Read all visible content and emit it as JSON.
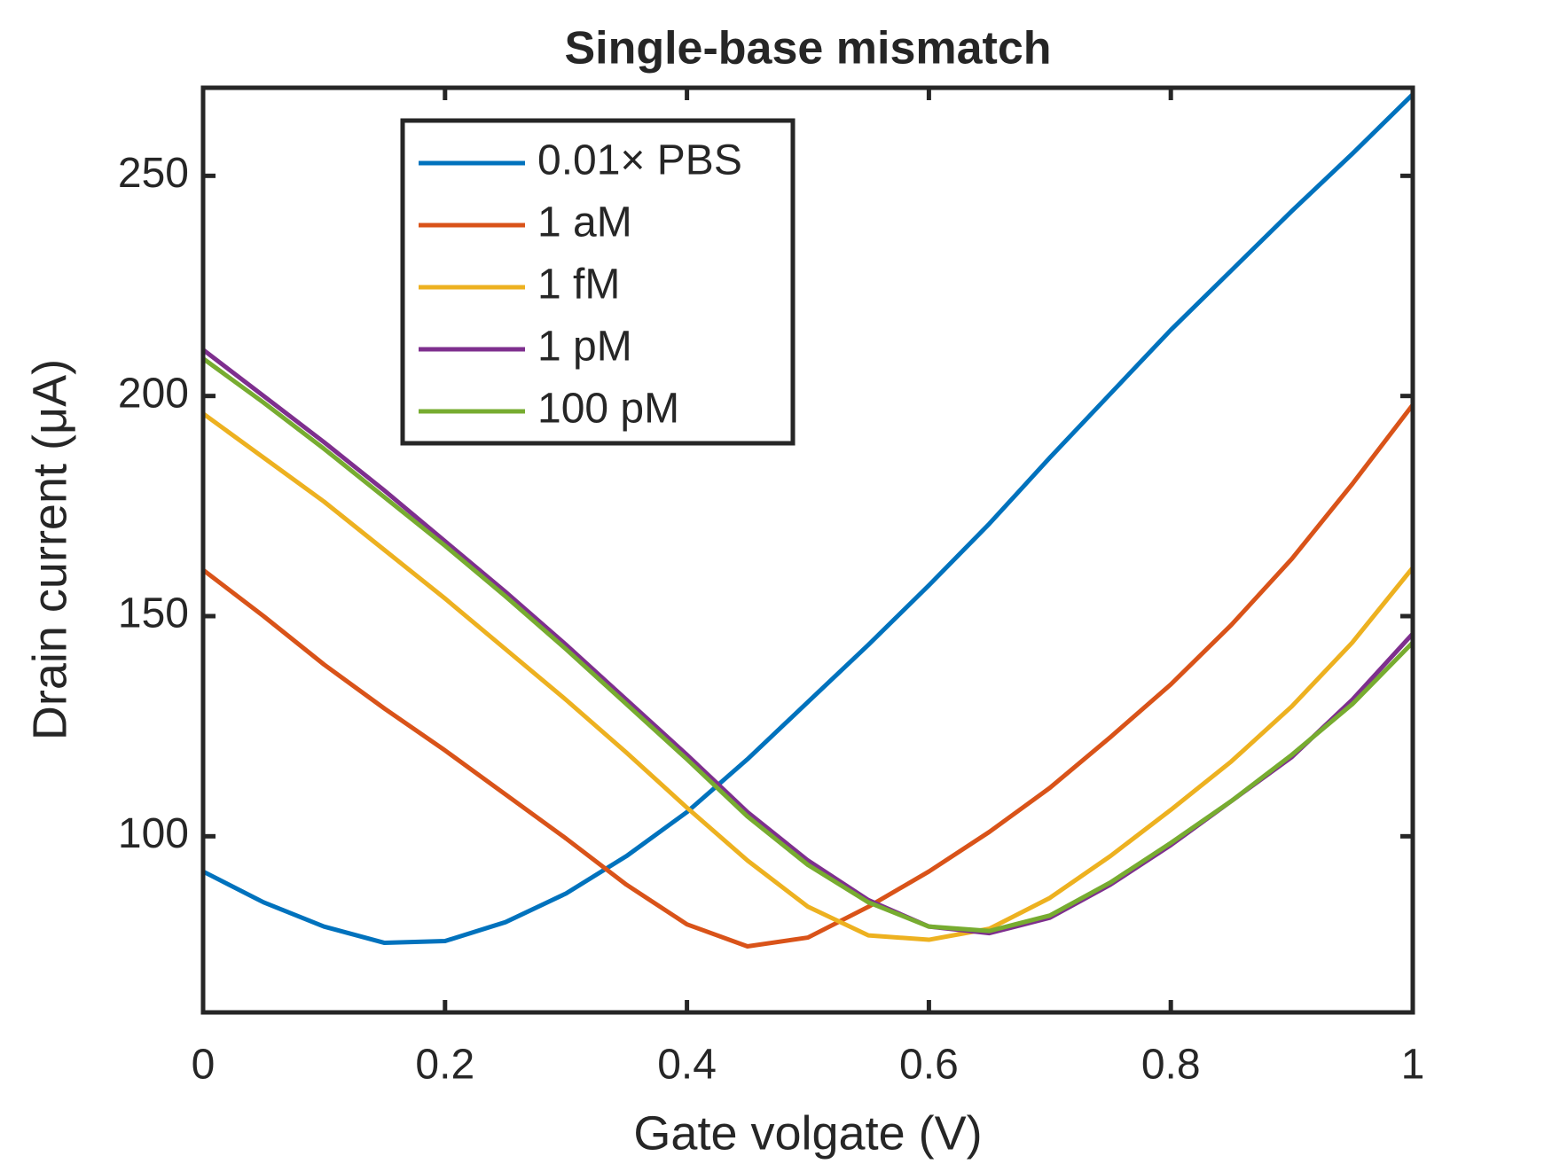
{
  "chart_data": {
    "type": "line",
    "title": "Single-base mismatch",
    "xlabel": "Gate volgate (V)",
    "ylabel": "Drain current (μA)",
    "x": [
      0,
      0.05,
      0.1,
      0.15,
      0.2,
      0.25,
      0.3,
      0.35,
      0.4,
      0.45,
      0.5,
      0.55,
      0.6,
      0.65,
      0.7,
      0.75,
      0.8,
      0.85,
      0.9,
      0.95,
      1
    ],
    "series": [
      {
        "name": "0.01× PBS",
        "color": "#0072bd",
        "values": [
          92,
          85,
          79.5,
          75.8,
          76.2,
          80.5,
          87,
          95.5,
          105.5,
          117.5,
          130.5,
          143.5,
          157,
          171,
          186,
          200.5,
          215,
          228.5,
          242,
          255,
          268.5
        ]
      },
      {
        "name": "1 aM",
        "color": "#d95319",
        "values": [
          160.5,
          150,
          139,
          129,
          119.5,
          109.5,
          99.5,
          89,
          80,
          75,
          77,
          84,
          92,
          101,
          111,
          122.5,
          134.5,
          148,
          163,
          180,
          198
        ]
      },
      {
        "name": "1 fM",
        "color": "#edb120",
        "values": [
          196,
          186,
          176,
          165,
          154,
          142.5,
          131,
          119,
          106.5,
          94.5,
          84,
          77.5,
          76.5,
          79,
          86,
          95.5,
          106,
          117,
          129.5,
          144,
          161
        ]
      },
      {
        "name": "1 pM",
        "color": "#7e2f8e",
        "values": [
          210.5,
          200,
          189.5,
          178.5,
          167,
          155.5,
          143.5,
          131,
          118.5,
          105.5,
          94.5,
          85.5,
          79.5,
          78,
          81.5,
          89,
          98,
          108,
          118,
          131,
          146
        ]
      },
      {
        "name": "100 pM",
        "color": "#77ac30",
        "values": [
          208.5,
          198.5,
          188,
          177,
          166,
          154.5,
          142.5,
          130,
          117.5,
          104.5,
          93.5,
          85,
          79.5,
          78.5,
          82,
          89.5,
          98.5,
          108,
          118.5,
          130,
          144
        ]
      }
    ],
    "xlim": [
      0,
      1
    ],
    "xticks": [
      0,
      0.2,
      0.4,
      0.6,
      0.8,
      1
    ],
    "ylim": [
      60,
      270
    ],
    "yticks": [
      100,
      150,
      200,
      250
    ],
    "grid": false,
    "legend": "upper left"
  }
}
